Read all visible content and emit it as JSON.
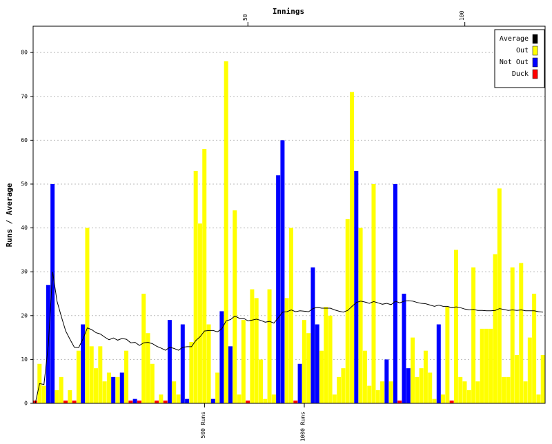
{
  "chart_data": {
    "type": "bar",
    "xlabel": "Innings",
    "ylabel": "Runs / Average",
    "xlim": [
      0.5,
      118.5
    ],
    "xticks": [
      50,
      100
    ],
    "xaxis_position": "top",
    "run_markers": [
      {
        "value": 40,
        "label": "500 Runs"
      },
      {
        "value": 63,
        "label": "1000 Runs"
      }
    ],
    "ylim": [
      0,
      86
    ],
    "yticks": [
      0,
      10,
      20,
      30,
      40,
      50,
      60,
      70,
      80
    ],
    "grid": true,
    "legend": "upper right",
    "x": [
      1,
      2,
      3,
      4,
      5,
      6,
      7,
      8,
      9,
      10,
      11,
      12,
      13,
      14,
      15,
      16,
      17,
      18,
      19,
      20,
      21,
      22,
      23,
      24,
      25,
      26,
      27,
      28,
      29,
      30,
      31,
      32,
      33,
      34,
      35,
      36,
      37,
      38,
      39,
      40,
      41,
      42,
      43,
      44,
      45,
      46,
      47,
      48,
      49,
      50,
      51,
      52,
      53,
      54,
      55,
      56,
      57,
      58,
      59,
      60,
      61,
      62,
      63,
      64,
      65,
      66,
      67,
      68,
      69,
      70,
      71,
      72,
      73,
      74,
      75,
      76,
      77,
      78,
      79,
      80,
      81,
      82,
      83,
      84,
      85,
      86,
      87,
      88,
      89,
      90,
      91,
      92,
      93,
      94,
      95,
      96,
      97,
      98,
      99,
      100,
      101,
      102,
      103,
      104,
      105,
      106,
      107,
      108,
      109,
      110,
      111,
      112,
      113,
      114,
      115,
      116,
      117,
      118
    ],
    "series": [
      {
        "name": "Average",
        "type": "line",
        "color": "#000000",
        "values": [
          0,
          4.5,
          4.3,
          13.3,
          30,
          23.3,
          19.8,
          16.5,
          14.6,
          12.8,
          12.7,
          14.7,
          17.2,
          16.8,
          16.1,
          15.8,
          15.1,
          14.5,
          14.9,
          14.4,
          14.8,
          14.6,
          13.8,
          13.9,
          13.2,
          13.8,
          13.9,
          13.6,
          13,
          12.6,
          12.1,
          12.8,
          12.5,
          12.1,
          12.8,
          12.9,
          12.9,
          14.3,
          15.2,
          16.5,
          16.6,
          16.6,
          16.3,
          17,
          18.8,
          19.1,
          19.9,
          19.4,
          19.4,
          18.8,
          19,
          19.2,
          18.9,
          18.5,
          18.7,
          18.3,
          19.5,
          20.8,
          20.9,
          21.3,
          20.9,
          21.1,
          21,
          20.9,
          21.6,
          21.9,
          21.7,
          21.7,
          21.7,
          21.3,
          21,
          20.8,
          21.2,
          22.1,
          23,
          23.3,
          23.1,
          22.8,
          23.2,
          22.9,
          22.6,
          22.8,
          22.5,
          23.3,
          22.9,
          23.3,
          23.4,
          23.3,
          23,
          22.8,
          22.7,
          22.4,
          22.1,
          22.4,
          22.1,
          22.1,
          21.8,
          22,
          21.8,
          21.5,
          21.3,
          21.4,
          21.2,
          21.2,
          21.1,
          21.1,
          21.2,
          21.6,
          21.4,
          21.2,
          21.3,
          21.2,
          21.3,
          21.1,
          21.1,
          21.1,
          20.9,
          20.8
        ]
      },
      {
        "name": "Out",
        "type": "bar",
        "color": "#ffff00",
        "values": [
          null,
          9,
          4,
          null,
          null,
          3,
          6,
          null,
          3,
          null,
          12,
          null,
          40,
          13,
          8,
          13,
          5,
          7,
          null,
          6,
          null,
          12,
          null,
          null,
          null,
          25,
          16,
          9,
          null,
          2,
          null,
          null,
          5,
          2,
          null,
          null,
          14,
          53,
          41,
          58,
          18,
          null,
          7,
          null,
          78,
          null,
          44,
          2,
          19,
          null,
          26,
          24,
          10,
          1,
          26,
          2,
          null,
          null,
          24,
          40,
          null,
          null,
          19,
          16,
          null,
          null,
          12,
          22,
          20,
          2,
          6,
          8,
          42,
          71,
          null,
          40,
          12,
          4,
          50,
          3,
          5,
          null,
          5,
          null,
          null,
          null,
          null,
          15,
          6,
          8,
          12,
          7,
          1,
          null,
          2,
          22,
          null,
          35,
          6,
          5,
          3,
          31,
          5,
          17,
          17,
          17,
          34,
          49,
          6,
          6,
          31,
          11,
          32,
          5,
          15,
          25,
          2,
          11
        ]
      },
      {
        "name": "Not Out",
        "type": "bar",
        "color": "#0000ff",
        "values": [
          null,
          null,
          null,
          27,
          50,
          null,
          null,
          null,
          null,
          null,
          null,
          18,
          null,
          null,
          null,
          null,
          null,
          null,
          6,
          null,
          7,
          null,
          null,
          1,
          null,
          null,
          null,
          null,
          null,
          null,
          null,
          19,
          null,
          null,
          18,
          1,
          null,
          null,
          null,
          null,
          null,
          1,
          null,
          21,
          null,
          13,
          null,
          null,
          null,
          null,
          null,
          null,
          null,
          null,
          null,
          null,
          52,
          60,
          null,
          null,
          null,
          9,
          null,
          null,
          31,
          18,
          null,
          null,
          null,
          null,
          null,
          null,
          null,
          null,
          53,
          null,
          null,
          null,
          null,
          null,
          null,
          10,
          null,
          50,
          null,
          25,
          8,
          null,
          null,
          null,
          null,
          null,
          null,
          18,
          null,
          null,
          null,
          null,
          null,
          null,
          null,
          null,
          null,
          null,
          null,
          null,
          null,
          null,
          null,
          null,
          null,
          null,
          null,
          null,
          null,
          null,
          null,
          null
        ]
      },
      {
        "name": "Duck",
        "type": "bar",
        "color": "#ff0000",
        "values": [
          0,
          null,
          null,
          null,
          null,
          null,
          null,
          0,
          null,
          0,
          null,
          null,
          null,
          null,
          null,
          null,
          null,
          null,
          null,
          null,
          null,
          null,
          0,
          null,
          0,
          null,
          null,
          null,
          0,
          null,
          0,
          null,
          null,
          null,
          null,
          null,
          null,
          null,
          null,
          null,
          null,
          null,
          null,
          null,
          null,
          null,
          null,
          null,
          null,
          0,
          null,
          null,
          null,
          null,
          null,
          null,
          null,
          null,
          null,
          null,
          0,
          null,
          null,
          null,
          null,
          null,
          null,
          null,
          null,
          null,
          null,
          null,
          null,
          null,
          null,
          null,
          null,
          null,
          null,
          null,
          null,
          null,
          null,
          null,
          0,
          null,
          null,
          null,
          null,
          null,
          null,
          null,
          null,
          null,
          null,
          null,
          0,
          null,
          null,
          null,
          null,
          null,
          null,
          null,
          null,
          null,
          null,
          null,
          null,
          null,
          null,
          null,
          null,
          null,
          null,
          null,
          null,
          null
        ]
      }
    ]
  }
}
